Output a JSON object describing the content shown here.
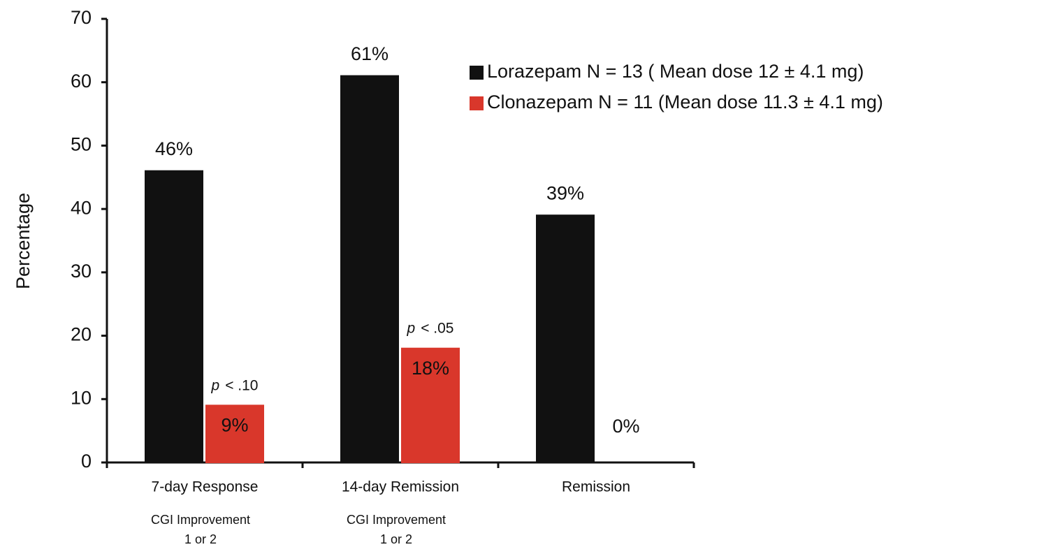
{
  "chart_data": {
    "type": "bar",
    "y_label": "Percentage",
    "categories": [
      "7-day Response",
      "14-day Remission",
      "Remission"
    ],
    "category_sublabels": [
      [
        "CGI Improvement",
        "1 or 2"
      ],
      [
        "CGI Improvement",
        "1 or 2"
      ],
      []
    ],
    "series": [
      {
        "name": "Lorazepam N = 13 ( Mean dose 12 ± 4.1 mg)",
        "color": "#111111",
        "values": [
          46,
          61,
          39
        ],
        "value_labels": [
          "46%",
          "61%",
          "39%"
        ]
      },
      {
        "name": "Clonazepam N = 11 (Mean dose 11.3 ± 4.1 mg)",
        "color": "#d9372b",
        "values": [
          9,
          18,
          0
        ],
        "value_labels": [
          "9%",
          "18%",
          "0%"
        ]
      }
    ],
    "annotations": [
      {
        "italic": "p",
        "text": "< .10"
      },
      {
        "italic": "p",
        "text": "< .05"
      },
      null
    ],
    "ylim": [
      0,
      70
    ],
    "yticks": [
      0,
      10,
      20,
      30,
      40,
      50,
      60,
      70
    ]
  }
}
